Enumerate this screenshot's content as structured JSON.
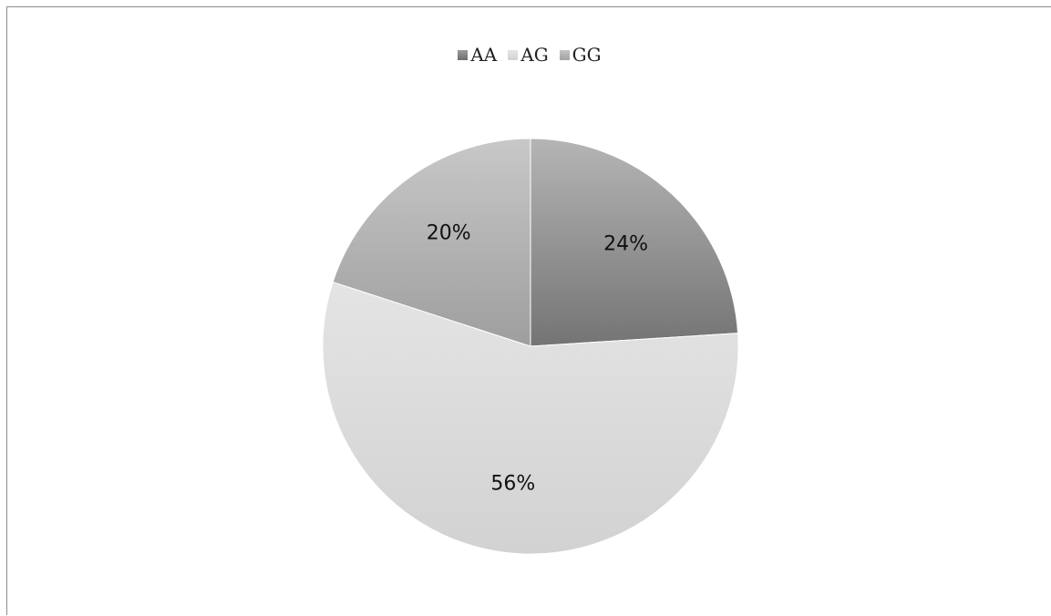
{
  "chart_data": {
    "type": "pie",
    "title": "",
    "legend_position": "top",
    "categories": [
      "AA",
      "AG",
      "GG"
    ],
    "values": [
      24,
      56,
      20
    ],
    "labels": [
      "24%",
      "56%",
      "20%"
    ],
    "colors": {
      "AA": "#7f7f7f",
      "AG": "#dcdcdc",
      "GG": "#b4b4b4"
    }
  }
}
